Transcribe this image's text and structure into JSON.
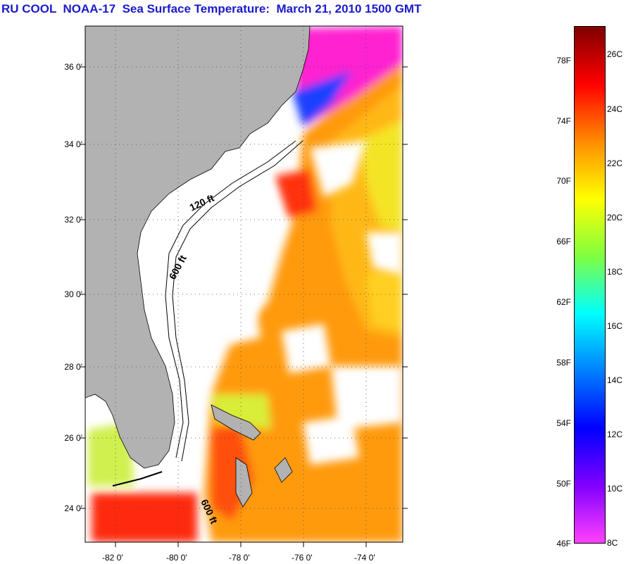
{
  "title": "RU COOL  NOAA-17  Sea Surface Temperature:  March 21, 2010 1500 GMT",
  "map": {
    "lat_labels": [
      "36 0'",
      "34 0'",
      "32 0'",
      "30 0'",
      "28 0'",
      "26 0'",
      "24 0'"
    ],
    "lon_labels": [
      "-82 0'",
      "-80 0'",
      "-78 0'",
      "-76 0'",
      "-74 0'"
    ],
    "contour_labels": [
      "120 ft",
      "600 ft",
      "600 ft"
    ],
    "colors": {
      "land": "#b2b2b2",
      "cloud": "#ffffff",
      "warm": "#ff9a10",
      "hot": "#ff2a10",
      "mid": "#ffe020",
      "cool": "#ff20d0"
    }
  },
  "colorbar": {
    "f_labels": [
      "78F",
      "74F",
      "70F",
      "66F",
      "62F",
      "58F",
      "54F",
      "50F",
      "46F"
    ],
    "c_labels": [
      "26C",
      "24C",
      "22C",
      "20C",
      "18C",
      "16C",
      "14C",
      "12C",
      "10C",
      "8C"
    ],
    "stops": [
      "#800000",
      "#ff0000",
      "#ff8c00",
      "#ffff00",
      "#80ff40",
      "#00ffff",
      "#0080ff",
      "#0000ff",
      "#8000ff",
      "#ff40ff"
    ]
  }
}
